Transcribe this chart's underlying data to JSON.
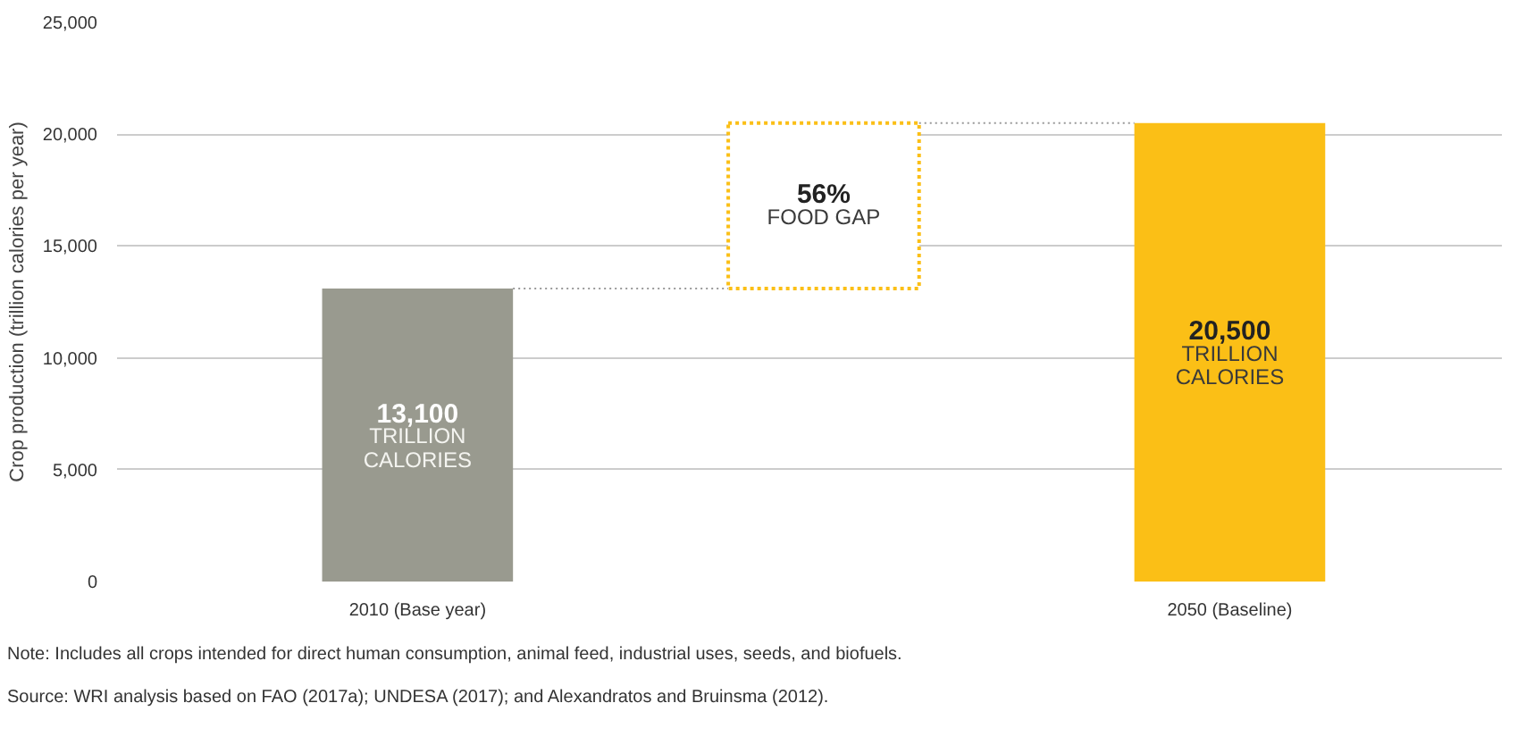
{
  "chart_data": {
    "type": "bar",
    "categories": [
      "2010 (Base year)",
      null,
      "2050 (Baseline)"
    ],
    "values": [
      13100,
      7400,
      20500
    ],
    "base": [
      0,
      13100,
      0
    ],
    "colors": [
      "#999a8f",
      "#ffffff",
      "#fbbf16"
    ],
    "value_labels": [
      "13,100\nTRILLION\nCALORIES",
      null,
      "20,500\nTRILLION\nCALORIES"
    ],
    "ref_lines": [
      {
        "axis": "y",
        "value": 13100,
        "color": "#999999",
        "line_style": "dotted"
      },
      {
        "axis": "y",
        "value": 20500,
        "color": "#999999",
        "line_style": "dotted"
      }
    ],
    "ylabel": "Crop production (trillion calories per year)",
    "ylim": [
      0,
      25000
    ],
    "yticks": [
      0,
      {
        "value": 5000,
        "label": "5,000"
      },
      {
        "value": 10000,
        "label": "10,000"
      },
      {
        "value": 15000,
        "label": "15,000"
      },
      {
        "value": 20000,
        "label": "20,000"
      },
      {
        "value": 25000,
        "label": "25,000"
      }
    ],
    "grid": "y",
    "annotations": [
      "56%\nFOOD GAP",
      "Note: Includes all crops intended for direct human consumption, animal feed, industrial uses, seeds, and biofuels.",
      "Source: WRI analysis based on FAO (2017a); UNDESA (2017); and Alexandratos and Bruinsma (2012)."
    ]
  }
}
